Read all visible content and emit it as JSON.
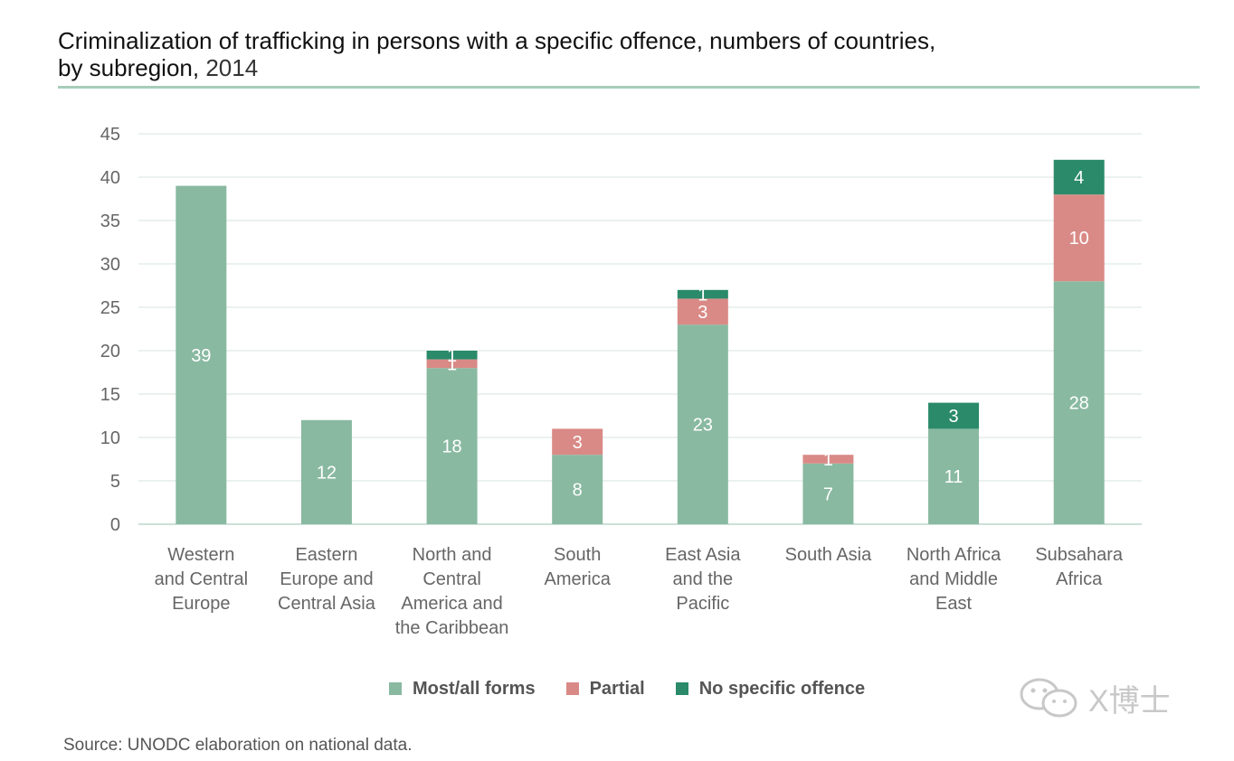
{
  "title": {
    "main": "Criminalization of trafficking in persons with a specific offence, numbers of countries,",
    "line2": "by subregion,",
    "year": "2014"
  },
  "source": "Source: UNODC elaboration on national data.",
  "watermark": "X博士",
  "legend": [
    {
      "label": "Most/all forms",
      "color": "#89b9a1"
    },
    {
      "label": "Partial",
      "color": "#d98a86"
    },
    {
      "label": "No specific offence",
      "color": "#2a8a6a"
    }
  ],
  "chart_data": {
    "type": "bar",
    "stacked": true,
    "title": "Criminalization of trafficking in persons with a specific offence, numbers of countries, by subregion, 2014",
    "categories": [
      [
        "Western",
        "and Central",
        "Europe"
      ],
      [
        "Eastern",
        "Europe and",
        "Central Asia"
      ],
      [
        "North and",
        "Central",
        "America and",
        "the Caribbean"
      ],
      [
        "South",
        "America"
      ],
      [
        "East Asia",
        "and the",
        "Pacific"
      ],
      [
        "South Asia"
      ],
      [
        "North Africa",
        "and Middle",
        "East"
      ],
      [
        "Subsahara",
        "Africa"
      ]
    ],
    "series": [
      {
        "name": "Most/all forms",
        "color": "#89b9a1",
        "values": [
          39,
          12,
          18,
          8,
          23,
          7,
          11,
          28
        ]
      },
      {
        "name": "Partial",
        "color": "#d98a86",
        "values": [
          0,
          0,
          1,
          3,
          3,
          1,
          0,
          10
        ]
      },
      {
        "name": "No specific offence",
        "color": "#2a8a6a",
        "values": [
          0,
          0,
          1,
          0,
          1,
          0,
          3,
          4
        ]
      }
    ],
    "ylim": [
      0,
      45
    ],
    "yticks": [
      0,
      5,
      10,
      15,
      20,
      25,
      30,
      35,
      40,
      45
    ],
    "grid": true,
    "legend_position": "bottom"
  }
}
